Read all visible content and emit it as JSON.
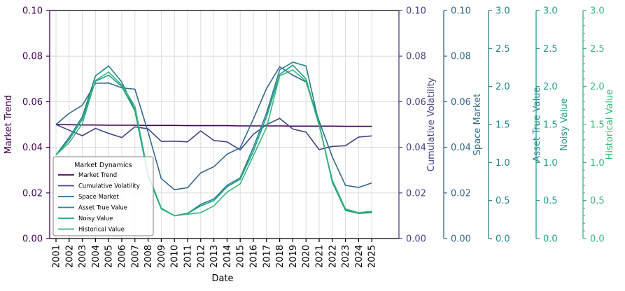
{
  "chart_data": {
    "type": "line",
    "x": [
      "2001",
      "2002",
      "2003",
      "2004",
      "2005",
      "2006",
      "2007",
      "2008",
      "2009",
      "2010",
      "2011",
      "2012",
      "2013",
      "2014",
      "2015",
      "2016",
      "2017",
      "2018",
      "2019",
      "2020",
      "2021",
      "2022",
      "2023",
      "2024",
      "2025"
    ],
    "xlabel": "Date",
    "grid": true,
    "legend": {
      "title": "Market Dynamics",
      "position": "lower-left"
    },
    "axes": [
      {
        "id": "market_trend",
        "label": "Market Trend",
        "side": "left",
        "ylim": [
          0,
          0.1
        ],
        "ticks": [
          "0.00",
          "0.02",
          "0.04",
          "0.06",
          "0.08",
          "0.10"
        ],
        "color": "#440154"
      },
      {
        "id": "cumulative_volatility",
        "label": "Cumulative Volatility",
        "side": "right",
        "ylim": [
          0,
          0.1
        ],
        "ticks": [
          "0.00",
          "0.02",
          "0.04",
          "0.06",
          "0.08",
          "0.10"
        ],
        "color": "#414487"
      },
      {
        "id": "space_market",
        "label": "Space Market",
        "side": "right",
        "ylim": [
          0,
          0.1
        ],
        "ticks": [
          "0.00",
          "0.02",
          "0.04",
          "0.06",
          "0.08",
          "0.10"
        ],
        "color": "#31688e"
      },
      {
        "id": "asset_true_value",
        "label": "Asset True Value",
        "side": "right",
        "ylim": [
          0,
          3.0
        ],
        "ticks": [
          "0.0",
          "0.5",
          "1.0",
          "1.5",
          "2.0",
          "2.5",
          "3.0"
        ],
        "color": "#26828e"
      },
      {
        "id": "noisy_value",
        "label": "Noisy Value",
        "side": "right",
        "ylim": [
          0,
          3.0
        ],
        "ticks": [
          "0.0",
          "0.5",
          "1.0",
          "1.5",
          "2.0",
          "2.5",
          "3.0"
        ],
        "color": "#1f9e89"
      },
      {
        "id": "historical_value",
        "label": "Historical Value",
        "side": "right",
        "ylim": [
          0,
          3.0
        ],
        "ticks": [
          "0.0",
          "0.5",
          "1.0",
          "1.5",
          "2.0",
          "2.5",
          "3.0"
        ],
        "color": "#35b779"
      }
    ],
    "series": [
      {
        "name": "Market Trend",
        "axis": "market_trend",
        "color": "#440154",
        "values": [
          0.05,
          0.0499,
          0.0498,
          0.0498,
          0.0497,
          0.0497,
          0.0497,
          0.0496,
          0.0496,
          0.0496,
          0.0495,
          0.0495,
          0.0495,
          0.0495,
          0.0494,
          0.0494,
          0.0494,
          0.0494,
          0.0493,
          0.0493,
          0.0493,
          0.0493,
          0.0492,
          0.0492,
          0.0492
        ]
      },
      {
        "name": "Cumulative Volatility",
        "axis": "cumulative_volatility",
        "color": "#414487",
        "values": [
          0.05,
          0.0475,
          0.0451,
          0.0483,
          0.0461,
          0.0443,
          0.049,
          0.0481,
          0.0426,
          0.0427,
          0.0424,
          0.0472,
          0.043,
          0.0424,
          0.0389,
          0.0457,
          0.0499,
          0.0527,
          0.048,
          0.0467,
          0.039,
          0.0404,
          0.0407,
          0.0445,
          0.045
        ]
      },
      {
        "name": "Space Market",
        "axis": "space_market",
        "color": "#31688e",
        "values": [
          0.05,
          0.0549,
          0.0584,
          0.0681,
          0.0682,
          0.0661,
          0.0655,
          0.0467,
          0.0263,
          0.0214,
          0.0223,
          0.0288,
          0.0315,
          0.037,
          0.0398,
          0.0524,
          0.0658,
          0.0753,
          0.0716,
          0.0687,
          0.0515,
          0.0358,
          0.0233,
          0.0224,
          0.0244
        ]
      },
      {
        "name": "Asset True Value",
        "axis": "asset_true_value",
        "color": "#26828e",
        "values": [
          1.1,
          1.33,
          1.6,
          2.14,
          2.27,
          2.06,
          1.69,
          0.85,
          0.4,
          0.3,
          0.33,
          0.45,
          0.52,
          0.7,
          0.8,
          1.2,
          1.65,
          2.22,
          2.32,
          2.27,
          1.51,
          0.75,
          0.38,
          0.33,
          0.35
        ]
      },
      {
        "name": "Noisy Value",
        "axis": "noisy_value",
        "color": "#1f9e89",
        "values": [
          1.1,
          1.3,
          1.57,
          2.07,
          2.15,
          2.0,
          1.68,
          0.82,
          0.39,
          0.3,
          0.33,
          0.43,
          0.5,
          0.68,
          0.78,
          1.15,
          1.6,
          2.16,
          2.28,
          2.1,
          1.5,
          0.74,
          0.37,
          0.33,
          0.34
        ]
      },
      {
        "name": "Historical Value",
        "axis": "historical_value",
        "color": "#35b779",
        "values": [
          1.1,
          1.26,
          1.51,
          2.08,
          2.19,
          2.02,
          1.74,
          0.85,
          0.4,
          0.3,
          0.32,
          0.34,
          0.43,
          0.61,
          0.72,
          1.09,
          1.46,
          2.14,
          2.22,
          2.07,
          1.49,
          0.77,
          0.39,
          0.34,
          0.36
        ]
      }
    ]
  }
}
